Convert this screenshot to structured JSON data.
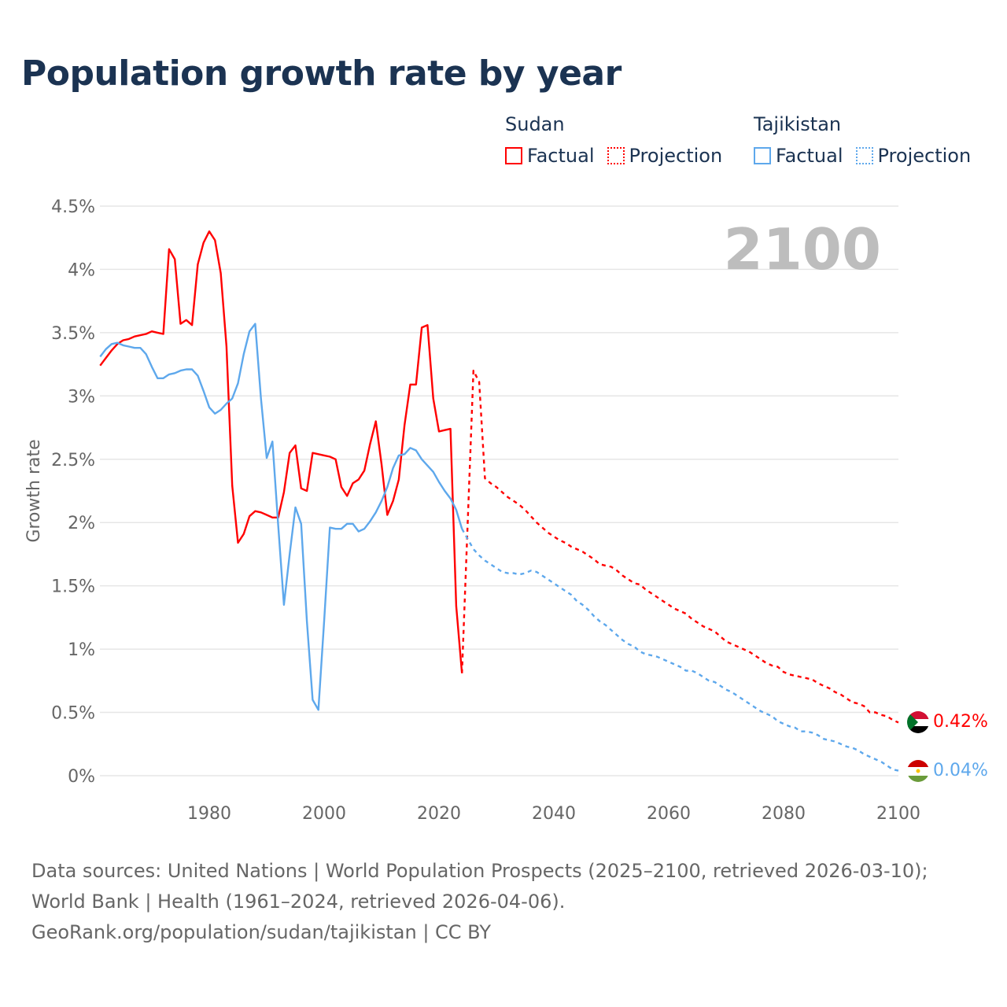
{
  "title": "Population growth rate by year",
  "legend": {
    "groups": [
      {
        "name": "Sudan",
        "color": "#ff0000",
        "factual_label": "Factual",
        "projection_label": "Projection"
      },
      {
        "name": "Tajikistan",
        "color": "#5ea8ec",
        "factual_label": "Factual",
        "projection_label": "Projection"
      }
    ]
  },
  "year_badge": "2100",
  "end_labels": {
    "sudan": "0.42%",
    "tajikistan": "0.04%"
  },
  "footer": {
    "line1": "Data sources: United Nations | World Population Prospects (2025–2100, retrieved 2026-03-10); World Bank | Health (1961–2024, retrieved 2026-04-06).",
    "line2": "GeoRank.org/population/sudan/tajikistan | CC BY"
  },
  "chart_data": {
    "type": "line",
    "title": "Population growth rate by year",
    "xlabel": "",
    "ylabel": "Growth rate",
    "xlim": [
      1961,
      2100
    ],
    "ylim": [
      0,
      4.5
    ],
    "x_ticks": [
      1980,
      2000,
      2020,
      2040,
      2060,
      2080,
      2100
    ],
    "y_ticks": [
      0,
      0.5,
      1,
      1.5,
      2,
      2.5,
      3,
      3.5,
      4,
      4.5
    ],
    "y_tick_labels": [
      "0%",
      "0.5%",
      "1%",
      "1.5%",
      "2%",
      "2.5%",
      "3%",
      "3.5%",
      "4%",
      "4.5%"
    ],
    "grid": true,
    "legend_position": "top-right",
    "series": [
      {
        "name": "Sudan Factual",
        "country": "Sudan",
        "style": "solid",
        "color": "#ff0000",
        "x_start": 1961,
        "values": [
          3.24,
          3.3,
          3.36,
          3.41,
          3.44,
          3.45,
          3.47,
          3.48,
          3.49,
          3.51,
          3.5,
          3.49,
          4.16,
          4.08,
          3.57,
          3.6,
          3.56,
          4.04,
          4.21,
          4.3,
          4.23,
          3.97,
          3.39,
          2.29,
          1.84,
          1.91,
          2.05,
          2.09,
          2.08,
          2.06,
          2.04,
          2.04,
          2.24,
          2.55,
          2.61,
          2.27,
          2.25,
          2.55,
          2.54,
          2.53,
          2.52,
          2.5,
          2.28,
          2.21,
          2.31,
          2.34,
          2.41,
          2.62,
          2.8,
          2.46,
          2.06,
          2.17,
          2.34,
          2.77,
          3.09,
          3.09,
          3.54,
          3.56,
          2.98,
          2.72,
          2.73,
          2.74,
          1.34,
          0.81
        ]
      },
      {
        "name": "Sudan Projection",
        "country": "Sudan",
        "style": "dotted",
        "color": "#ff0000",
        "x_start": 2024,
        "values": [
          0.81,
          2.0,
          3.2,
          3.11,
          2.35,
          2.31,
          2.28,
          2.24,
          2.2,
          2.17,
          2.14,
          2.1,
          2.05,
          2.0,
          1.96,
          1.92,
          1.89,
          1.86,
          1.84,
          1.81,
          1.79,
          1.77,
          1.74,
          1.71,
          1.67,
          1.66,
          1.65,
          1.62,
          1.58,
          1.55,
          1.52,
          1.51,
          1.47,
          1.44,
          1.41,
          1.38,
          1.35,
          1.32,
          1.3,
          1.28,
          1.24,
          1.21,
          1.18,
          1.16,
          1.14,
          1.1,
          1.06,
          1.04,
          1.02,
          1.0,
          0.98,
          0.95,
          0.92,
          0.89,
          0.87,
          0.86,
          0.82,
          0.8,
          0.79,
          0.78,
          0.77,
          0.76,
          0.73,
          0.71,
          0.69,
          0.66,
          0.64,
          0.61,
          0.58,
          0.57,
          0.55,
          0.5,
          0.5,
          0.48,
          0.47,
          0.44,
          0.42
        ]
      },
      {
        "name": "Tajikistan Factual",
        "country": "Tajikistan",
        "style": "solid",
        "color": "#5ea8ec",
        "x_start": 1961,
        "values": [
          3.31,
          3.37,
          3.41,
          3.42,
          3.4,
          3.39,
          3.38,
          3.38,
          3.33,
          3.23,
          3.14,
          3.14,
          3.17,
          3.18,
          3.2,
          3.21,
          3.21,
          3.16,
          3.04,
          2.91,
          2.86,
          2.89,
          2.94,
          2.98,
          3.1,
          3.33,
          3.51,
          3.57,
          2.98,
          2.51,
          2.64,
          1.98,
          1.35,
          1.75,
          2.12,
          1.99,
          1.22,
          0.6,
          0.52,
          1.22,
          1.96,
          1.95,
          1.95,
          1.99,
          1.99,
          1.93,
          1.95,
          2.01,
          2.08,
          2.17,
          2.28,
          2.43,
          2.53,
          2.54,
          2.59,
          2.57,
          2.5,
          2.45,
          2.4,
          2.32,
          2.25,
          2.19,
          2.1,
          1.95
        ]
      },
      {
        "name": "Tajikistan Projection",
        "country": "Tajikistan",
        "style": "dotted",
        "color": "#5ea8ec",
        "x_start": 2024,
        "values": [
          1.95,
          1.87,
          1.79,
          1.74,
          1.7,
          1.67,
          1.64,
          1.61,
          1.6,
          1.6,
          1.59,
          1.6,
          1.62,
          1.61,
          1.58,
          1.55,
          1.52,
          1.49,
          1.46,
          1.43,
          1.38,
          1.35,
          1.31,
          1.26,
          1.22,
          1.19,
          1.15,
          1.11,
          1.07,
          1.04,
          1.02,
          0.98,
          0.96,
          0.95,
          0.94,
          0.92,
          0.9,
          0.88,
          0.86,
          0.83,
          0.83,
          0.81,
          0.78,
          0.75,
          0.74,
          0.71,
          0.68,
          0.66,
          0.63,
          0.6,
          0.57,
          0.54,
          0.51,
          0.49,
          0.47,
          0.43,
          0.41,
          0.39,
          0.38,
          0.35,
          0.35,
          0.34,
          0.32,
          0.29,
          0.28,
          0.27,
          0.25,
          0.23,
          0.22,
          0.2,
          0.17,
          0.15,
          0.13,
          0.11,
          0.08,
          0.05,
          0.04
        ]
      }
    ]
  }
}
